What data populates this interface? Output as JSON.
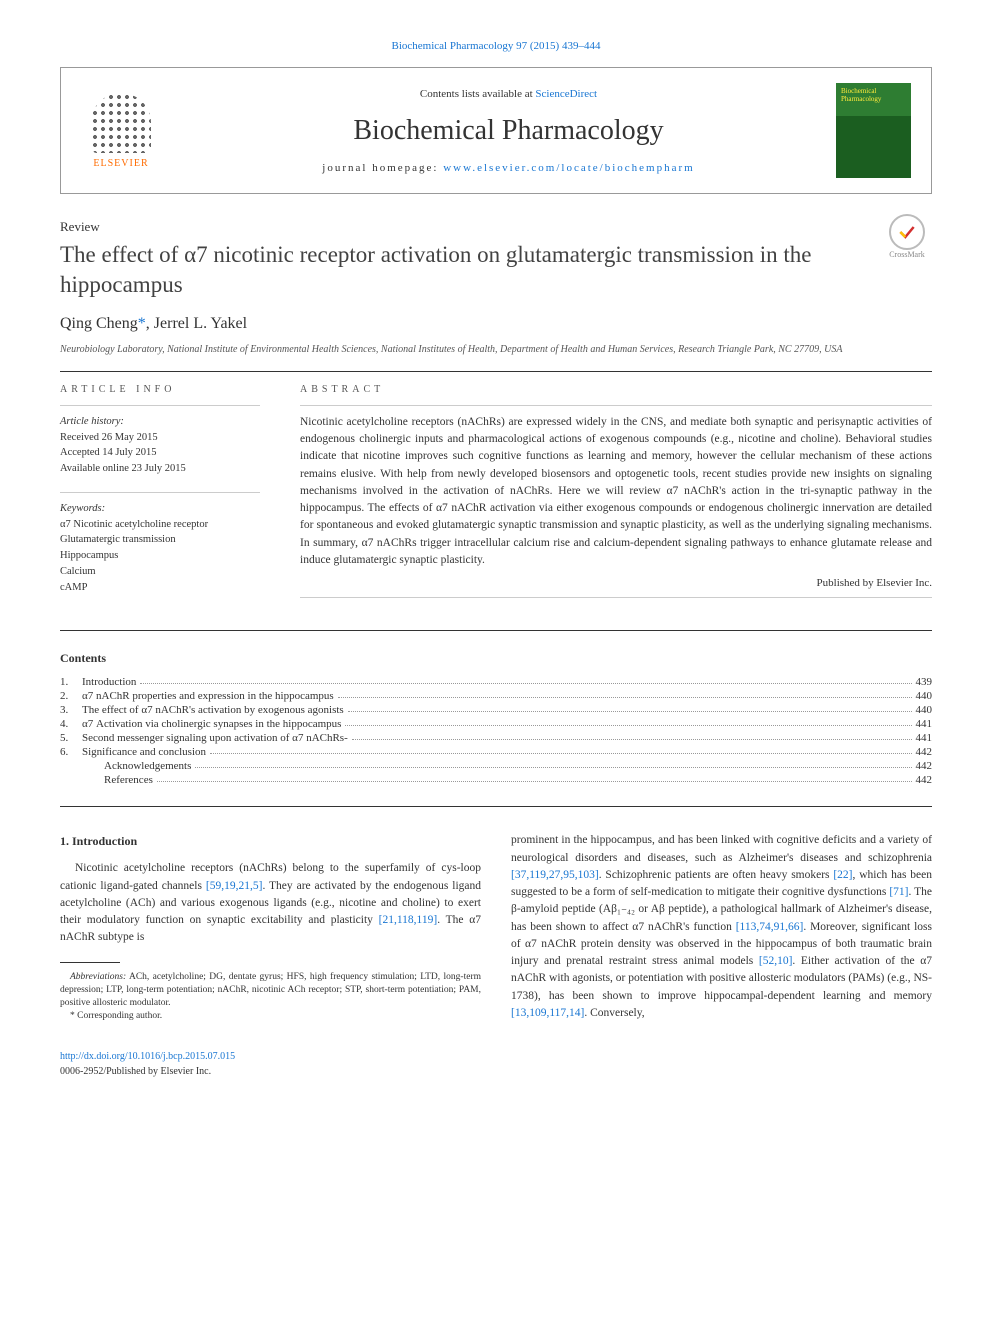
{
  "top_citation": "Biochemical Pharmacology 97 (2015) 439–444",
  "header": {
    "contents_prefix": "Contents lists available at ",
    "contents_link": "ScienceDirect",
    "journal_name": "Biochemical Pharmacology",
    "homepage_prefix": "journal homepage: ",
    "homepage_link": "www.elsevier.com/locate/biochempharm",
    "elsevier": "ELSEVIER",
    "cover_line1": "Biochemical",
    "cover_line2": "Pharmacology",
    "crossmark": "CrossMark"
  },
  "article": {
    "review_label": "Review",
    "title": "The effect of α7 nicotinic receptor activation on glutamatergic transmission in the hippocampus",
    "authors_html": "Qing Cheng",
    "author_mark": "*",
    "author2": ", Jerrel L. Yakel",
    "affiliation": "Neurobiology Laboratory, National Institute of Environmental Health Sciences, National Institutes of Health, Department of Health and Human Services, Research Triangle Park, NC 27709, USA"
  },
  "info": {
    "label": "ARTICLE INFO",
    "history_label": "Article history:",
    "received": "Received 26 May 2015",
    "accepted": "Accepted 14 July 2015",
    "online": "Available online 23 July 2015",
    "keywords_label": "Keywords:",
    "keywords": [
      "α7 Nicotinic acetylcholine receptor",
      "Glutamatergic transmission",
      "Hippocampus",
      "Calcium",
      "cAMP"
    ]
  },
  "abstract": {
    "label": "ABSTRACT",
    "text": "Nicotinic acetylcholine receptors (nAChRs) are expressed widely in the CNS, and mediate both synaptic and perisynaptic activities of endogenous cholinergic inputs and pharmacological actions of exogenous compounds (e.g., nicotine and choline). Behavioral studies indicate that nicotine improves such cognitive functions as learning and memory, however the cellular mechanism of these actions remains elusive. With help from newly developed biosensors and optogenetic tools, recent studies provide new insights on signaling mechanisms involved in the activation of nAChRs. Here we will review α7 nAChR's action in the tri-synaptic pathway in the hippocampus. The effects of α7 nAChR activation via either exogenous compounds or endogenous cholinergic innervation are detailed for spontaneous and evoked glutamatergic synaptic transmission and synaptic plasticity, as well as the underlying signaling mechanisms. In summary, α7 nAChRs trigger intracellular calcium rise and calcium-dependent signaling pathways to enhance glutamate release and induce glutamatergic synaptic plasticity.",
    "publisher": "Published by Elsevier Inc."
  },
  "contents": {
    "heading": "Contents",
    "items": [
      {
        "num": "1.",
        "title": "Introduction",
        "page": "439"
      },
      {
        "num": "2.",
        "title": "α7 nAChR properties and expression in the hippocampus",
        "page": "440"
      },
      {
        "num": "3.",
        "title": "The effect of α7 nAChR's activation by exogenous agonists",
        "page": "440"
      },
      {
        "num": "4.",
        "title": "α7 Activation via cholinergic synapses in the hippocampus",
        "page": "441"
      },
      {
        "num": "5.",
        "title": "Second messenger signaling upon activation of α7 nAChRs-",
        "page": "441"
      },
      {
        "num": "6.",
        "title": "Significance and conclusion",
        "page": "442"
      },
      {
        "num": "",
        "title": "Acknowledgements",
        "page": "442",
        "sub": true
      },
      {
        "num": "",
        "title": "References",
        "page": "442",
        "sub": true
      }
    ]
  },
  "body": {
    "intro_heading": "1. Introduction",
    "left_p1_a": "Nicotinic acetylcholine receptors (nAChRs) belong to the superfamily of cys-loop cationic ligand-gated channels ",
    "left_ref1": "[59,19,21,5]",
    "left_p1_b": ". They are activated by the endogenous ligand acetylcholine (ACh) and various exogenous ligands (e.g., nicotine and choline) to exert their modulatory function on synaptic excitability and plasticity ",
    "left_ref2": "[21,118,119]",
    "left_p1_c": ". The α7 nAChR subtype is",
    "abbrev_label": "Abbreviations:",
    "abbrev_text": " ACh, acetylcholine; DG, dentate gyrus; HFS, high frequency stimulation; LTD, long-term depression; LTP, long-term potentiation; nAChR, nicotinic ACh receptor; STP, short-term potentiation; PAM, positive allosteric modulator.",
    "corr_author": "* Corresponding author.",
    "right_a": "prominent in the hippocampus, and has been linked with cognitive deficits and a variety of neurological disorders and diseases, such as Alzheimer's diseases and schizophrenia ",
    "right_ref1": "[37,119,27,95,103]",
    "right_b": ". Schizophrenic patients are often heavy smokers ",
    "right_ref2": "[22]",
    "right_c": ", which has been suggested to be a form of self-medication to mitigate their cognitive dysfunctions ",
    "right_ref3": "[71]",
    "right_d": ". The β-amyloid peptide (Aβ₁₋₄₂ or Aβ peptide), a pathological hallmark of Alzheimer's disease, has been shown to affect α7 nAChR's function ",
    "right_ref4": "[113,74,91,66]",
    "right_e": ". Moreover, significant loss of α7 nAChR protein density was observed in the hippocampus of both traumatic brain injury and prenatal restraint stress animal models ",
    "right_ref5": "[52,10]",
    "right_f": ". Either activation of the α7 nAChR with agonists, or potentiation with positive allosteric modulators (PAMs) (e.g., NS-1738), has been shown to improve hippocampal-dependent learning and memory ",
    "right_ref6": "[13,109,117,14]",
    "right_g": ". Conversely,"
  },
  "doi": {
    "link": "http://dx.doi.org/10.1016/j.bcp.2015.07.015",
    "issn": "0006-2952/Published by Elsevier Inc."
  },
  "colors": {
    "link": "#1976d2",
    "text": "#333333",
    "cover_top": "#2e7d32",
    "cover_bottom": "#1b5e20",
    "elsevier_orange": "#ff6b00"
  }
}
